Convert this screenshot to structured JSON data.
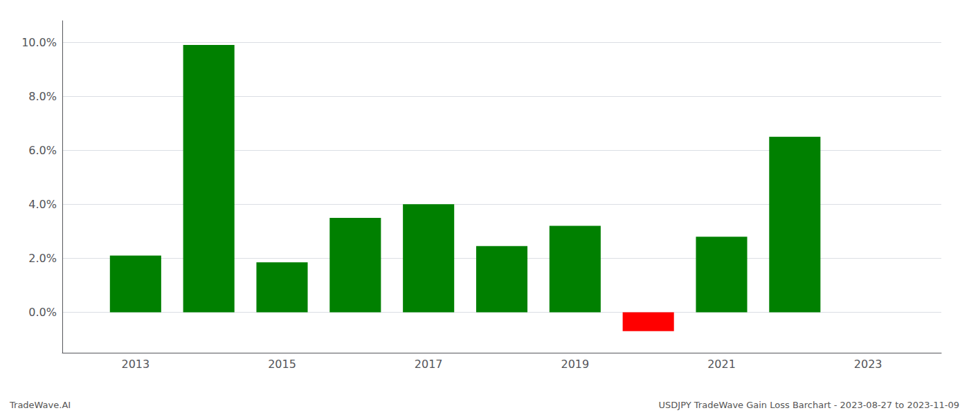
{
  "chart_data": {
    "type": "bar",
    "x": [
      2013,
      2014,
      2015,
      2016,
      2017,
      2018,
      2019,
      2020,
      2021,
      2022
    ],
    "values": [
      0.021,
      0.099,
      0.0185,
      0.035,
      0.04,
      0.0245,
      0.032,
      -0.007,
      0.028,
      0.065
    ],
    "colors": [
      "#008000",
      "#008000",
      "#008000",
      "#008000",
      "#008000",
      "#008000",
      "#008000",
      "#ff0000",
      "#008000",
      "#008000"
    ],
    "xlim": [
      2012.0,
      2024.0
    ],
    "xticks": [
      2013,
      2015,
      2017,
      2019,
      2021,
      2023
    ],
    "ylim": [
      -0.015,
      0.108
    ],
    "yticks": [
      {
        "value": 0.0,
        "label": "0.0%"
      },
      {
        "value": 0.02,
        "label": "2.0%"
      },
      {
        "value": 0.04,
        "label": "4.0%"
      },
      {
        "value": 0.06,
        "label": "6.0%"
      },
      {
        "value": 0.08,
        "label": "8.0%"
      },
      {
        "value": 0.1,
        "label": "10.0%"
      }
    ],
    "grid": true,
    "annotations": [
      "TradeWave.AI",
      "USDJPY TradeWave Gain Loss Barchart - 2023-08-27 to 2023-11-09"
    ]
  }
}
